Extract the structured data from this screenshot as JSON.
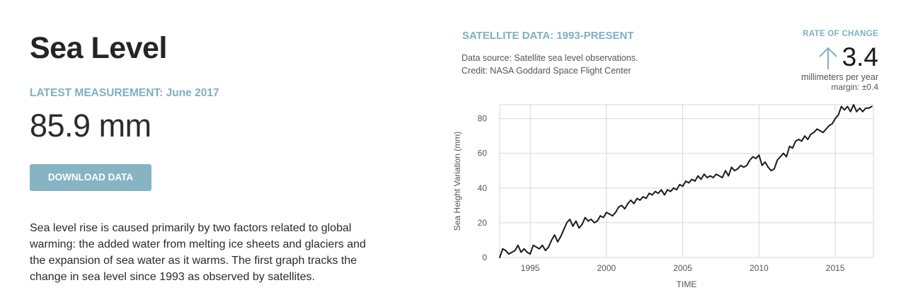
{
  "left": {
    "title": "Sea Level",
    "latest_label": "LATEST MEASUREMENT: June 2017",
    "measurement": "85.9 mm",
    "download_label": "DOWNLOAD DATA",
    "description": "Sea level rise is caused primarily by two factors related to global warming: the added water from melting ice sheets and glaciers and the expansion of sea water as it warms. The first graph tracks the change in sea level since 1993 as observed by satellites."
  },
  "panel": {
    "title": "SATELLITE DATA: 1993-PRESENT",
    "source_line1": "Data source: Satellite sea level observations.",
    "source_line2": "Credit: NASA Goddard Space Flight Center"
  },
  "rate": {
    "label": "RATE OF CHANGE",
    "value": "3.4",
    "unit": "millimeters per year",
    "margin": "margin: ±0.4",
    "icon": "arrow-up-icon",
    "color": "#7fb0c0"
  },
  "chart_data": {
    "type": "line",
    "xlabel": "TIME",
    "ylabel": "Sea Height Variation (mm)",
    "xlim": [
      1993,
      2017.5
    ],
    "ylim": [
      0,
      88
    ],
    "xticks": [
      1995,
      2000,
      2005,
      2010,
      2015
    ],
    "yticks": [
      0,
      20,
      40,
      60,
      80
    ],
    "grid": true,
    "line_color": "#1a1a1a",
    "x": [
      1993.0,
      1993.2,
      1993.4,
      1993.6,
      1993.8,
      1994.0,
      1994.2,
      1994.4,
      1994.6,
      1994.8,
      1995.0,
      1995.2,
      1995.4,
      1995.6,
      1995.8,
      1996.0,
      1996.2,
      1996.4,
      1996.6,
      1996.8,
      1997.0,
      1997.2,
      1997.4,
      1997.6,
      1997.8,
      1998.0,
      1998.2,
      1998.4,
      1998.6,
      1998.8,
      1999.0,
      1999.2,
      1999.4,
      1999.6,
      1999.8,
      2000.0,
      2000.2,
      2000.4,
      2000.6,
      2000.8,
      2001.0,
      2001.2,
      2001.4,
      2001.6,
      2001.8,
      2002.0,
      2002.2,
      2002.4,
      2002.6,
      2002.8,
      2003.0,
      2003.2,
      2003.4,
      2003.6,
      2003.8,
      2004.0,
      2004.2,
      2004.4,
      2004.6,
      2004.8,
      2005.0,
      2005.2,
      2005.4,
      2005.6,
      2005.8,
      2006.0,
      2006.2,
      2006.4,
      2006.6,
      2006.8,
      2007.0,
      2007.2,
      2007.4,
      2007.6,
      2007.8,
      2008.0,
      2008.2,
      2008.4,
      2008.6,
      2008.8,
      2009.0,
      2009.2,
      2009.4,
      2009.6,
      2009.8,
      2010.0,
      2010.2,
      2010.4,
      2010.6,
      2010.8,
      2011.0,
      2011.2,
      2011.4,
      2011.6,
      2011.8,
      2012.0,
      2012.2,
      2012.4,
      2012.6,
      2012.8,
      2013.0,
      2013.2,
      2013.4,
      2013.6,
      2013.8,
      2014.0,
      2014.2,
      2014.4,
      2014.6,
      2014.8,
      2015.0,
      2015.2,
      2015.4,
      2015.6,
      2015.8,
      2016.0,
      2016.2,
      2016.4,
      2016.6,
      2016.8,
      2017.0,
      2017.2,
      2017.4
    ],
    "values": [
      0,
      5,
      4,
      2,
      3,
      4,
      7,
      3,
      5,
      3,
      2,
      7,
      6,
      5,
      7,
      4,
      6,
      10,
      13,
      9,
      12,
      16,
      20,
      22,
      18,
      21,
      17,
      19,
      23,
      21,
      22,
      20,
      21,
      24,
      23,
      26,
      25,
      24,
      26,
      29,
      30,
      28,
      31,
      33,
      31,
      34,
      33,
      35,
      34,
      37,
      36,
      38,
      37,
      39,
      36,
      39,
      38,
      40,
      39,
      42,
      41,
      44,
      43,
      45,
      44,
      47,
      45,
      48,
      46,
      47,
      46,
      48,
      47,
      46,
      50,
      47,
      52,
      50,
      51,
      53,
      52,
      53,
      56,
      58,
      57,
      59,
      53,
      55,
      52,
      50,
      51,
      56,
      58,
      60,
      58,
      64,
      63,
      67,
      68,
      67,
      70,
      68,
      71,
      72,
      74,
      73,
      72,
      74,
      76,
      77,
      80,
      82,
      87,
      85,
      87,
      84,
      88,
      84,
      86,
      84,
      86,
      86,
      87
    ]
  }
}
